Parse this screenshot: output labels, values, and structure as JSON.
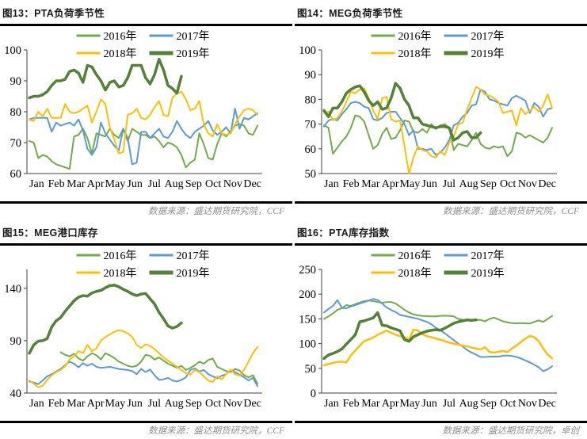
{
  "colors": {
    "y2016": "#70AD47",
    "y2017": "#5B9BD5",
    "y2018": "#FFC000",
    "y2019": "#538135",
    "axis": "#404040",
    "rule": "#000000",
    "source_text": "#8e8e8e"
  },
  "chart_data": [
    {
      "type": "line",
      "title": "图13：PTA负荷季节性",
      "source": "数据来源：盛达期货研究院，CCF",
      "x_labels": [
        "Jan",
        "Feb",
        "Mar",
        "Apr",
        "May",
        "Jun",
        "Jul",
        "Aug",
        "Sep",
        "Oct",
        "Nov",
        "Dec"
      ],
      "ylim": [
        60,
        100
      ],
      "yticks": [
        60,
        70,
        80,
        90,
        100
      ],
      "legend_position": "top-center",
      "grid": false,
      "series": [
        {
          "name": "2016年",
          "color": "#70AD47",
          "width": 2,
          "start_week": 1,
          "values": [
            70.5,
            70,
            65,
            66,
            65.5,
            64,
            63,
            62.5,
            62,
            61.5,
            72,
            72.5,
            74.5,
            71.5,
            66.5,
            73,
            72.5,
            72,
            74.5,
            72.5,
            71.5,
            74.5,
            70.5,
            74.5,
            73.5,
            72.5,
            72.5,
            71.5,
            72,
            70.5,
            68.5,
            70,
            69.5,
            68.5,
            66,
            62,
            63.5,
            64.5,
            73,
            69.5,
            65,
            64.5,
            69.5,
            73,
            72,
            73.5,
            75.5,
            76,
            75.5,
            73,
            72.5,
            75.5
          ]
        },
        {
          "name": "2017年",
          "color": "#5B9BD5",
          "width": 2,
          "start_week": 1,
          "values": [
            77.5,
            78,
            78,
            78,
            78,
            73.5,
            76.5,
            75.5,
            76,
            76.5,
            75.5,
            77.5,
            74,
            68,
            66,
            68.5,
            76.5,
            73,
            71,
            69,
            67.5,
            74.5,
            71.5,
            63,
            63.5,
            73.5,
            73.5,
            71.5,
            73,
            74.5,
            72,
            71.5,
            73.5,
            77,
            74.5,
            72.5,
            71.5,
            73.5,
            74.5,
            75.5,
            77,
            74,
            72.5,
            73.5,
            75,
            73,
            81,
            74.5,
            78,
            77.5,
            78.5,
            79.5
          ]
        },
        {
          "name": "2018年",
          "color": "#FFC000",
          "width": 2,
          "start_week": 1,
          "values": [
            77.5,
            77,
            80,
            78.5,
            81,
            78,
            78,
            78,
            82.5,
            80,
            79.5,
            80,
            81,
            82,
            76.5,
            80,
            84,
            82.5,
            75,
            71,
            66.5,
            67,
            79,
            79.5,
            81,
            78,
            77.5,
            79,
            81.5,
            83.5,
            79,
            78.5,
            84.5,
            86,
            86.5,
            84,
            80.5,
            81,
            83.5,
            76,
            73,
            72,
            76,
            73,
            72.5,
            73,
            76,
            78.5,
            80.5,
            81,
            80.5,
            79
          ]
        },
        {
          "name": "2019年",
          "color": "#538135",
          "width": 3.5,
          "start_week": 1,
          "values": [
            84.5,
            85,
            85,
            85.5,
            86.5,
            88.5,
            90,
            90,
            90.5,
            93,
            93.5,
            92.5,
            89.5,
            95,
            94.5,
            92,
            90,
            87,
            89.5,
            90,
            88,
            88.5,
            91,
            95,
            95,
            95,
            91,
            89,
            92,
            97,
            93.5,
            88.5,
            87.5,
            86,
            91.5
          ]
        }
      ]
    },
    {
      "type": "line",
      "title": "图14：MEG负荷季节性",
      "source": "数据来源：盛达期货研究院，CCF",
      "x_labels": [
        "Jan",
        "Feb",
        "Mar",
        "Apr",
        "May",
        "Jun",
        "Jul",
        "Aug",
        "Sep",
        "Oct",
        "Nov",
        "Dec"
      ],
      "ylim": [
        50,
        100
      ],
      "yticks": [
        50,
        60,
        70,
        80,
        90,
        100
      ],
      "legend_position": "top-center",
      "grid": false,
      "series": [
        {
          "name": "2016年",
          "color": "#70AD47",
          "width": 2,
          "start_week": 1,
          "values": [
            69.5,
            68.5,
            58,
            60.5,
            63,
            65,
            68.5,
            73.5,
            73,
            71,
            65.5,
            60,
            61.5,
            66,
            68.5,
            64,
            64.5,
            67.5,
            71.5,
            71,
            67,
            66.5,
            68,
            66.5,
            70,
            68,
            69.5,
            70,
            68.5,
            59.5,
            62,
            61.5,
            61,
            63.5,
            66.5,
            62,
            60.5,
            60,
            61,
            60.5,
            61,
            57,
            59,
            66.5,
            66,
            64.5,
            65.5,
            64.5,
            63.5,
            62.5,
            64.5,
            68.5
          ]
        },
        {
          "name": "2017年",
          "color": "#5B9BD5",
          "width": 2,
          "start_week": 1,
          "values": [
            69,
            71.5,
            72,
            71.5,
            74,
            76,
            78.5,
            79,
            78.5,
            77,
            76.5,
            72,
            71.5,
            72.5,
            74.5,
            75,
            75,
            72.5,
            70,
            65.5,
            67.5,
            60,
            60,
            59.5,
            60,
            57.5,
            58.5,
            60.5,
            63.5,
            69.5,
            70.5,
            73,
            74.5,
            77.5,
            78,
            84,
            83,
            80,
            79.5,
            78.5,
            78,
            77.5,
            80.5,
            81.5,
            80.5,
            79.5,
            74.5,
            78.5,
            77,
            73,
            76,
            76.5
          ]
        },
        {
          "name": "2018年",
          "color": "#FFC000",
          "width": 2,
          "start_week": 1,
          "values": [
            74.5,
            75,
            71.5,
            72.5,
            75,
            79,
            83,
            82.5,
            84,
            84.5,
            80.5,
            75.5,
            72,
            80.5,
            81,
            72,
            71,
            71.5,
            61,
            50,
            56.5,
            61,
            59.5,
            59,
            57,
            56.5,
            59,
            57.5,
            62.5,
            65,
            70,
            70.5,
            76,
            80.5,
            85,
            84,
            82,
            81.5,
            80.5,
            79,
            74.5,
            75,
            75.5,
            69.5,
            76.5,
            74,
            75.5,
            77,
            75,
            77.5,
            82,
            76.5
          ]
        },
        {
          "name": "2019年",
          "color": "#538135",
          "width": 3.5,
          "start_week": 1,
          "values": [
            75.5,
            73,
            76.5,
            76.5,
            79,
            82.5,
            84,
            85,
            85.5,
            83,
            79.5,
            77.5,
            79,
            76,
            76.5,
            80.5,
            86.5,
            84.5,
            80,
            77.5,
            72.5,
            72.5,
            70,
            69.5,
            69,
            68.5,
            69,
            69,
            68.5,
            63.5,
            64.5,
            66.5,
            67,
            64.5,
            64.5,
            66.5
          ]
        }
      ]
    },
    {
      "type": "line",
      "title": "图15：MEG港口库存",
      "source": "数据来源：盛达期货研究院，CCF",
      "x_labels": [
        "Jan",
        "Feb",
        "Mar",
        "Apr",
        "May",
        "Jun",
        "Jul",
        "Aug",
        "Sep",
        "Oct",
        "Nov",
        "Dec"
      ],
      "ylim": [
        40,
        158
      ],
      "yticks": [
        40,
        90,
        140
      ],
      "legend_position": "top-center",
      "grid": false,
      "series": [
        {
          "name": "2016年",
          "color": "#70AD47",
          "width": 2,
          "start_week": 8,
          "values": [
            79,
            76.5,
            75,
            77.5,
            73,
            71,
            75,
            78,
            76,
            72,
            78,
            76,
            73.5,
            70,
            68,
            66,
            65,
            66,
            70,
            76.5,
            75.5,
            72,
            74,
            71,
            68,
            66,
            64,
            66,
            62,
            64,
            66.5,
            70,
            68,
            71.5,
            73,
            65,
            63,
            61,
            60,
            63,
            61.5,
            57,
            55,
            57,
            49
          ]
        },
        {
          "name": "2017年",
          "color": "#5B9BD5",
          "width": 2,
          "start_week": 1,
          "values": [
            51,
            50,
            48.5,
            52,
            56,
            58,
            60.5,
            63,
            66.5,
            70,
            68,
            64.5,
            68.5,
            66,
            68,
            65,
            64,
            64.5,
            65,
            64,
            63,
            62.5,
            62,
            61,
            58,
            63,
            60,
            62.5,
            57,
            52.5,
            53,
            54.5,
            52,
            51,
            52.5,
            55,
            62,
            63.5,
            60.5,
            62,
            58,
            56,
            54,
            56.5,
            58,
            62,
            60,
            57.5,
            55,
            52,
            54.5,
            46.5
          ]
        },
        {
          "name": "2018年",
          "color": "#FFC000",
          "width": 2,
          "start_week": 1,
          "values": [
            52,
            49,
            45.5,
            47,
            52.5,
            57,
            60,
            62,
            65.5,
            72,
            75,
            80,
            78,
            86,
            80,
            82.5,
            90,
            93.5,
            96,
            98.5,
            100,
            99,
            97,
            93.5,
            86,
            83,
            86.5,
            85,
            82,
            78,
            74,
            71,
            68,
            65,
            62,
            59,
            57.5,
            62,
            60,
            56,
            52,
            50.5,
            56,
            53,
            58,
            62.5,
            58,
            56.5,
            62,
            70,
            78,
            84
          ]
        },
        {
          "name": "2019年",
          "color": "#538135",
          "width": 3.5,
          "start_week": 1,
          "values": [
            78,
            86,
            89.5,
            90,
            92,
            103,
            109,
            112,
            118,
            123,
            128,
            131.5,
            133,
            132.5,
            135.5,
            137,
            138,
            140.5,
            142.5,
            143,
            141.5,
            139,
            137,
            134.5,
            133,
            134.5,
            135,
            130,
            125,
            117,
            111,
            104,
            102,
            103.5,
            107
          ]
        }
      ]
    },
    {
      "type": "line",
      "title": "图16：PTA库存指数",
      "source": "数据来源：盛达期货研究院，卓创",
      "x_labels": [
        "Jan",
        "Feb",
        "Mar",
        "Apr",
        "May",
        "Jun",
        "Jul",
        "Aug",
        "Sep",
        "Oct",
        "Nov",
        "Dec"
      ],
      "ylim": [
        0,
        250
      ],
      "yticks": [
        0,
        50,
        100,
        150,
        200,
        250
      ],
      "legend_position": "top-center",
      "grid": false,
      "series": [
        {
          "name": "2016年",
          "color": "#70AD47",
          "width": 2,
          "start_week": 1,
          "values": [
            150,
            155,
            161,
            168,
            172,
            178,
            176,
            180,
            183,
            186,
            187,
            186,
            184,
            182.5,
            184,
            184,
            181,
            175,
            168,
            163,
            159,
            157,
            156,
            155.5,
            155,
            155,
            156,
            156.5,
            156,
            155,
            150,
            148,
            147,
            146,
            147.5,
            148,
            145,
            150,
            152.5,
            149,
            145,
            143,
            141.5,
            141,
            141.5,
            141,
            140.5,
            144,
            147,
            144,
            150,
            156
          ]
        },
        {
          "name": "2017年",
          "color": "#5B9BD5",
          "width": 2,
          "start_week": 1,
          "values": [
            163,
            170,
            176,
            188,
            172,
            171.5,
            175,
            178,
            181,
            184,
            187,
            190.5,
            188,
            181,
            173,
            168,
            164,
            158,
            156,
            154,
            152,
            150,
            147,
            144,
            139,
            132,
            127,
            121,
            114,
            107,
            100,
            94,
            87,
            82,
            77.5,
            73,
            73,
            73.5,
            74,
            73.5,
            75.5,
            76,
            75,
            73,
            70,
            66,
            62,
            57,
            52,
            44,
            48,
            54
          ]
        },
        {
          "name": "2018年",
          "color": "#FFC000",
          "width": 2.5,
          "start_week": 1,
          "values": [
            56,
            58.5,
            61,
            63,
            63.5,
            62,
            76,
            86,
            96,
            105,
            108.5,
            112,
            118,
            122,
            126.5,
            122,
            118,
            115,
            112.5,
            108,
            128.5,
            126,
            119,
            115,
            113,
            110,
            108,
            105,
            102,
            100,
            98,
            96,
            94.5,
            92,
            90,
            88,
            92.5,
            83,
            82,
            83.5,
            85,
            83,
            90,
            96,
            103,
            110,
            115.5,
            113,
            105,
            90,
            78,
            70
          ]
        },
        {
          "name": "2019年",
          "color": "#538135",
          "width": 3.5,
          "start_week": 1,
          "values": [
            70,
            77,
            80,
            84,
            89,
            99,
            108,
            118,
            144,
            146,
            149,
            152,
            162.5,
            137,
            136,
            132,
            129,
            126,
            108,
            104.5,
            114,
            118,
            122,
            125,
            127,
            128,
            127,
            131,
            136,
            141,
            144,
            146,
            148,
            147,
            148
          ]
        }
      ]
    }
  ]
}
